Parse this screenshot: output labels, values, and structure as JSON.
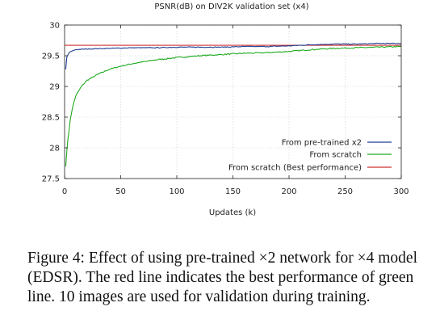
{
  "chart_data": {
    "type": "line",
    "title": "PSNR(dB) on DIV2K validation set (x4)",
    "xlabel": "Updates (k)",
    "ylabel": "",
    "xlim": [
      0,
      300
    ],
    "ylim": [
      27.5,
      30
    ],
    "xticks": [
      "0",
      "50",
      "100",
      "150",
      "200",
      "250",
      "300"
    ],
    "yticks": [
      "27.5",
      "28",
      "28.5",
      "29",
      "29.5",
      "30"
    ],
    "grid": true,
    "legend_position": "bottom-right",
    "series": [
      {
        "name": "From pre-trained x2",
        "color": "#1f3f93",
        "x": [
          1,
          2,
          4,
          6,
          10,
          20,
          40,
          60,
          80,
          100,
          120,
          140,
          160,
          180,
          200,
          220,
          240,
          260,
          280,
          300
        ],
        "y": [
          29.28,
          29.48,
          29.55,
          29.57,
          29.6,
          29.61,
          29.62,
          29.63,
          29.63,
          29.64,
          29.64,
          29.64,
          29.65,
          29.65,
          29.66,
          29.68,
          29.69,
          29.69,
          29.7,
          29.7
        ]
      },
      {
        "name": "From scratch",
        "color": "#1faa1f",
        "x": [
          1,
          2,
          3,
          5,
          7,
          10,
          15,
          20,
          30,
          40,
          50,
          60,
          80,
          100,
          120,
          140,
          160,
          180,
          200,
          220,
          240,
          260,
          280,
          300
        ],
        "y": [
          27.7,
          27.95,
          28.15,
          28.45,
          28.65,
          28.85,
          29.0,
          29.1,
          29.2,
          29.28,
          29.33,
          29.37,
          29.43,
          29.47,
          29.5,
          29.52,
          29.54,
          29.55,
          29.57,
          29.6,
          29.62,
          29.63,
          29.64,
          29.65
        ]
      },
      {
        "name": "From scratch (Best performance)",
        "color": "#d03030",
        "x": [
          0,
          300
        ],
        "y": [
          29.67,
          29.67
        ]
      }
    ]
  },
  "caption": "Figure 4: Effect of using pre-trained ×2 network for ×4 model (EDSR). The red line indicates the best performance of green line. 10 images are used for validation during training."
}
